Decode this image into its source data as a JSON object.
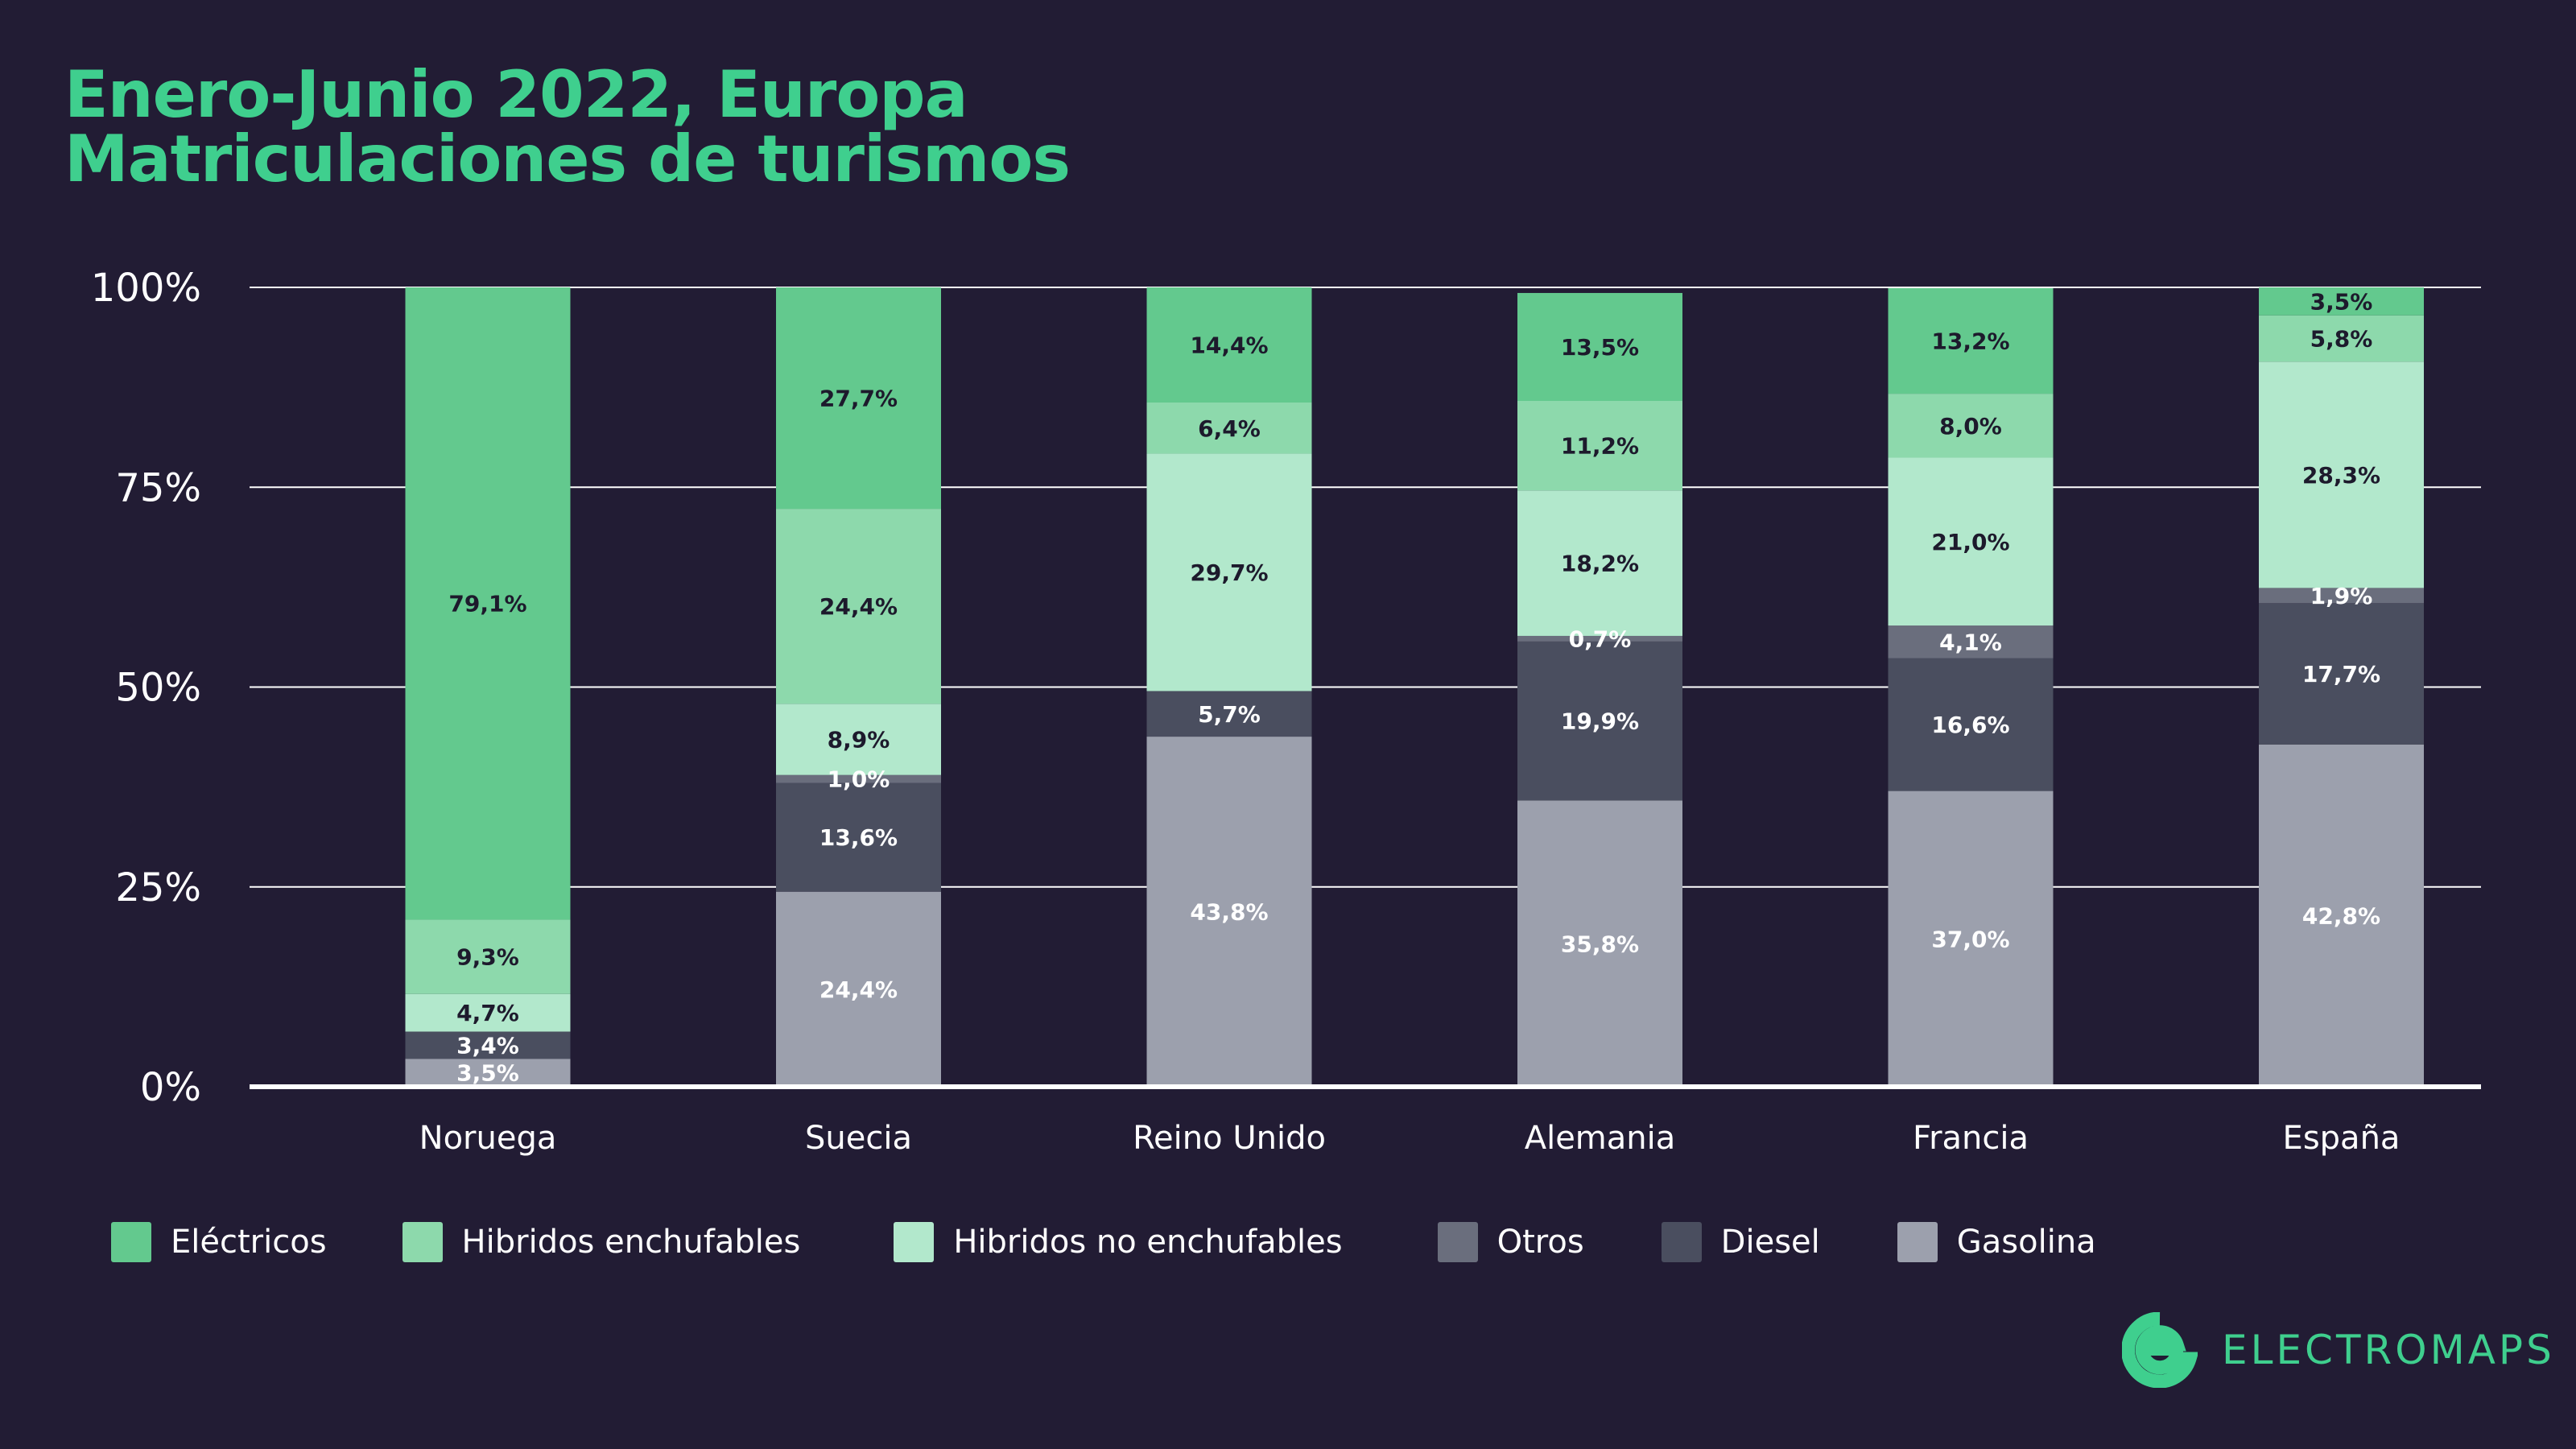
{
  "header": {
    "title_line1": "Enero-Junio 2022, Europa",
    "title_line2": "Matriculaciones de turismos"
  },
  "chart_data": {
    "type": "bar",
    "stacked": true,
    "categories": [
      "Noruega",
      "Suecia",
      "Reino Unido",
      "Alemania",
      "Francia",
      "España"
    ],
    "y_ticks": [
      "0%",
      "25%",
      "50%",
      "75%",
      "100%"
    ],
    "ylim": [
      0,
      100
    ],
    "grid": true,
    "legend_position": "bottom-left",
    "series": [
      {
        "name": "Gasolina",
        "color": "#9ca0ad",
        "values": [
          3.5,
          24.4,
          43.8,
          35.8,
          37.0,
          42.8
        ],
        "labels": [
          "3,5%",
          "24,4%",
          "43,8%",
          "35,8%",
          "37,0%",
          "42,8%"
        ],
        "label_color": "#ffffff"
      },
      {
        "name": "Diesel",
        "color": "#4a4e5f",
        "values": [
          3.4,
          13.6,
          5.7,
          19.9,
          16.6,
          17.7
        ],
        "labels": [
          "3,4%",
          "13,6%",
          "5,7%",
          "19,9%",
          "16,6%",
          "17,7%"
        ],
        "label_color": "#ffffff"
      },
      {
        "name": "Otros",
        "color": "#6a6e7d",
        "values": [
          0,
          1.0,
          0,
          0.7,
          4.1,
          1.9
        ],
        "labels": [
          "",
          "1,0%",
          "",
          "0,7%",
          "4,1%",
          "1,9%"
        ],
        "label_color": "#ffffff"
      },
      {
        "name": "Hibridos no enchufables",
        "color": "#b2e8cc",
        "values": [
          4.7,
          8.9,
          29.7,
          18.2,
          21.0,
          28.3
        ],
        "labels": [
          "4,7%",
          "8,9%",
          "29,7%",
          "18,2%",
          "21,0%",
          "28,3%"
        ],
        "label_color": "#1d1a2c"
      },
      {
        "name": "Hibridos enchufables",
        "color": "#8dd9ac",
        "values": [
          9.3,
          24.4,
          6.4,
          11.2,
          8.0,
          5.8
        ],
        "labels": [
          "9,3%",
          "24,4%",
          "6,4%",
          "11,2%",
          "8,0%",
          "5,8%"
        ],
        "label_color": "#1d1a2c"
      },
      {
        "name": "Eléctricos",
        "color": "#63c98e",
        "values": [
          79.1,
          27.7,
          14.4,
          13.5,
          13.2,
          3.5
        ],
        "labels": [
          "79,1%",
          "27,7%",
          "14,4%",
          "13,5%",
          "13,2%",
          "3,5%"
        ],
        "label_color": "#1d1a2c"
      }
    ]
  },
  "legend": {
    "items": [
      {
        "label": "Eléctricos",
        "color": "#63c98e"
      },
      {
        "label": "Hibridos enchufables",
        "color": "#8dd9ac"
      },
      {
        "label": "Hibridos no enchufables",
        "color": "#b2e8cc"
      },
      {
        "label": "Otros",
        "color": "#6a6e7d"
      },
      {
        "label": "Diesel",
        "color": "#4a4e5f"
      },
      {
        "label": "Gasolina",
        "color": "#9ca0ad"
      }
    ]
  },
  "brand": {
    "name": "ELECTROMAPS",
    "icon": "electromaps-e-icon",
    "color": "#3fcf8e"
  },
  "colors": {
    "background": "#221c34",
    "title": "#3fcf8e",
    "gridline": "#ffffff"
  }
}
